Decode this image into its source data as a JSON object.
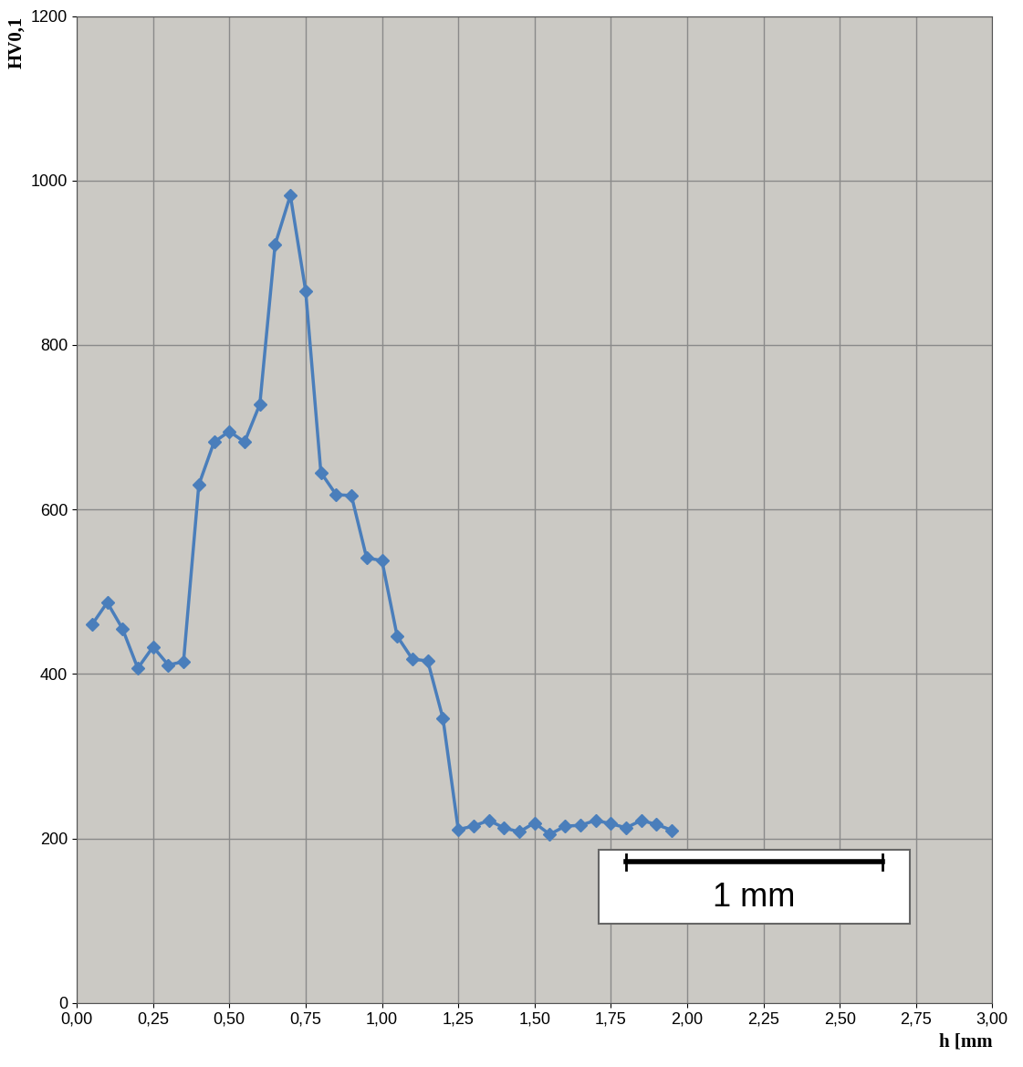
{
  "chart_data": {
    "type": "line",
    "x_label": "h [mm",
    "y_label": "HV0,1",
    "annotations": [
      "1 mm"
    ],
    "x": [
      0.05,
      0.1,
      0.15,
      0.2,
      0.25,
      0.3,
      0.35,
      0.4,
      0.45,
      0.5,
      0.55,
      0.6,
      0.65,
      0.7,
      0.75,
      0.8,
      0.85,
      0.9,
      0.95,
      1.0,
      1.05,
      1.1,
      1.15,
      1.2,
      1.25,
      1.3,
      1.35,
      1.4,
      1.45,
      1.5,
      1.55,
      1.6,
      1.65,
      1.7,
      1.75,
      1.8,
      1.85,
      1.9,
      1.95
    ],
    "values": [
      460,
      487,
      455,
      407,
      433,
      411,
      415,
      630,
      682,
      695,
      682,
      728,
      922,
      982,
      866,
      645,
      618,
      617,
      541,
      538,
      446,
      418,
      416,
      346,
      211,
      215,
      222,
      213,
      208,
      219,
      205,
      215,
      216,
      222,
      218,
      213,
      222,
      217,
      210
    ],
    "color": "#4a7ebb",
    "marker": "diamond",
    "xlim": [
      0,
      3
    ],
    "ylim": [
      0,
      1200
    ],
    "xticks": [
      {
        "value": 0,
        "label": "0,00"
      },
      {
        "value": 0.25,
        "label": "0,25"
      },
      {
        "value": 0.5,
        "label": "0,50"
      },
      {
        "value": 0.75,
        "label": "0,75"
      },
      {
        "value": 1,
        "label": "1,00"
      },
      {
        "value": 1.25,
        "label": "1,25"
      },
      {
        "value": 1.5,
        "label": "1,50"
      },
      {
        "value": 1.75,
        "label": "1,75"
      },
      {
        "value": 2,
        "label": "2,00"
      },
      {
        "value": 2.25,
        "label": "2,25"
      },
      {
        "value": 2.5,
        "label": "2,50"
      },
      {
        "value": 2.75,
        "label": "2,75"
      },
      {
        "value": 3,
        "label": "3,00"
      }
    ],
    "yticks": [
      0,
      200,
      400,
      600,
      800,
      1000,
      1200
    ],
    "grid": true
  }
}
